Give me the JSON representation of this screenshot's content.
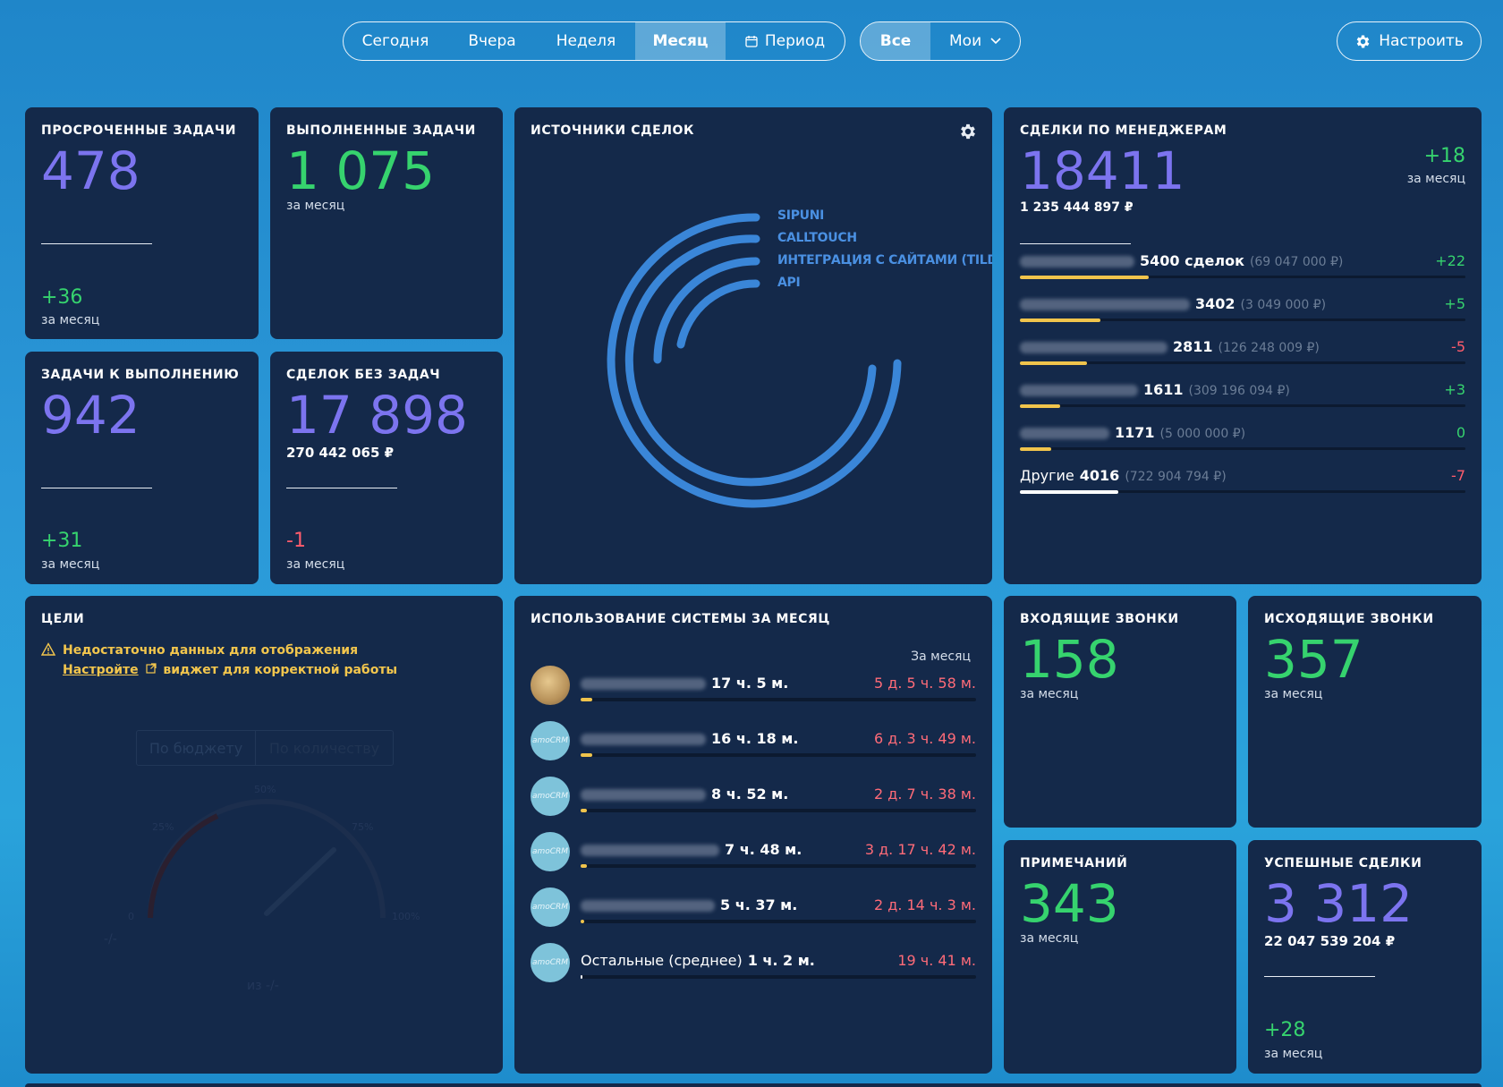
{
  "filters": {
    "period": [
      {
        "label": "Сегодня",
        "active": false
      },
      {
        "label": "Вчера",
        "active": false
      },
      {
        "label": "Неделя",
        "active": false
      },
      {
        "label": "Месяц",
        "active": true
      },
      {
        "label": "Период",
        "active": false
      }
    ],
    "scope": [
      {
        "label": "Все",
        "active": true
      },
      {
        "label": "Мои",
        "active": false
      }
    ],
    "setup_label": "Настроить"
  },
  "overdue": {
    "title": "Просроченные задачи",
    "value": "478",
    "delta": "+36",
    "delta_caption": "за месяц"
  },
  "done": {
    "title": "Выполненные задачи",
    "value": "1 075",
    "caption": "за месяц"
  },
  "todo": {
    "title": "Задачи к выполнению",
    "value": "942",
    "delta": "+31",
    "delta_caption": "за месяц"
  },
  "no_tasks": {
    "title": "Сделок без задач",
    "value": "17 898",
    "amount": "270 442 065 ₽",
    "delta": "-1",
    "delta_caption": "за месяц"
  },
  "sources": {
    "title": "Источники сделок",
    "legend": [
      "SIPUNI",
      "CALLTOUCH",
      "ИНТЕГРАЦИЯ С САЙТАМИ (TILD",
      "API"
    ],
    "color": "#3a86d8"
  },
  "managers": {
    "title": "Сделки по менеджерам",
    "value": "18411",
    "amount": "1 235 444 897 ₽",
    "delta": "+18",
    "delta_caption": "за месяц",
    "rows": [
      {
        "count": "5400 сделок",
        "sum": "(69 047 000 ₽)",
        "delta": "+22",
        "delta_color": "green",
        "fill": 0.29
      },
      {
        "count": "3402",
        "sum": "(3 049 000 ₽)",
        "delta": "+5",
        "delta_color": "green",
        "fill": 0.18
      },
      {
        "count": "2811",
        "sum": "(126 248 009 ₽)",
        "delta": "-5",
        "delta_color": "red",
        "fill": 0.15
      },
      {
        "count": "1611",
        "sum": "(309 196 094 ₽)",
        "delta": "+3",
        "delta_color": "green",
        "fill": 0.09
      },
      {
        "count": "1171",
        "sum": "(5 000 000 ₽)",
        "delta": "0",
        "delta_color": "green",
        "fill": 0.07
      },
      {
        "label": "Другие",
        "count": "4016",
        "sum": "(722 904 794 ₽)",
        "delta": "-7",
        "delta_color": "red",
        "fill": 0.22
      }
    ]
  },
  "goals": {
    "title": "Цели",
    "warning_line1": "Недостаточно данных для отображения",
    "warning_link": "Настройте",
    "warning_line2": "виджет для корректной работы",
    "tab_budget": "По бюджету",
    "tab_count": "По количеству",
    "gauge_labels": {
      "p50": "50%",
      "p25": "25%",
      "p75": "75%",
      "p0": "0",
      "p100": "100%"
    },
    "dash": "-/-",
    "of": "из -/-"
  },
  "usage": {
    "title": "Использование системы за месяц",
    "column_header": "За месяц",
    "rows": [
      {
        "time": "17 ч. 5 м.",
        "value": "5 д. 5 ч. 58 м.",
        "photo": true,
        "fill": 0.03
      },
      {
        "time": "16 ч. 18 м.",
        "value": "6 д. 3 ч. 49 м.",
        "photo": false,
        "fill": 0.03
      },
      {
        "time": "8 ч. 52 м.",
        "value": "2 д. 7 ч. 38 м.",
        "photo": false,
        "fill": 0.015
      },
      {
        "time": "7 ч. 48 м.",
        "value": "3 д. 17 ч. 42 м.",
        "photo": false,
        "fill": 0.015
      },
      {
        "time": "5 ч. 37 м.",
        "value": "2 д. 14 ч. 3 м.",
        "photo": false,
        "fill": 0.01
      },
      {
        "label": "Остальные (среднее)",
        "time": "1 ч. 2 м.",
        "value": "19 ч. 41 м.",
        "photo": false,
        "fill": 0.004
      }
    ],
    "avatar_text": "amoCRM"
  },
  "incoming": {
    "title": "Входящие звонки",
    "value": "158",
    "caption": "за месяц"
  },
  "outgoing": {
    "title": "Исходящие звонки",
    "value": "357",
    "caption": "за месяц"
  },
  "notes": {
    "title": "Примечаний",
    "value": "343",
    "caption": "за месяц"
  },
  "won": {
    "title": "Успешные сделки",
    "value": "3 312",
    "amount": "22 047 539 204 ₽",
    "delta": "+28",
    "delta_caption": "за месяц"
  }
}
